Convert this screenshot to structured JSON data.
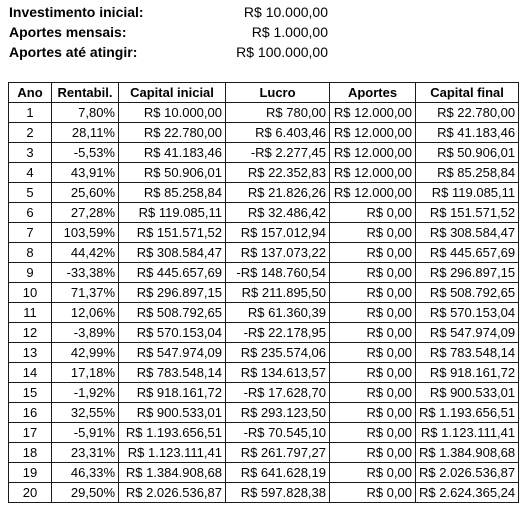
{
  "summary": {
    "initial_label": "Investimento inicial:",
    "initial_value": "R$ 10.000,00",
    "monthly_label": "Aportes mensais:",
    "monthly_value": "R$ 1.000,00",
    "target_label": "Aportes até atingir:",
    "target_value": "R$ 100.000,00"
  },
  "table": {
    "headers": [
      "Ano",
      "Rentabil.",
      "Capital inicial",
      "Lucro",
      "Aportes",
      "Capital final"
    ],
    "rows": [
      [
        "1",
        "7,80%",
        "R$ 10.000,00",
        "R$ 780,00",
        "R$ 12.000,00",
        "R$ 22.780,00"
      ],
      [
        "2",
        "28,11%",
        "R$ 22.780,00",
        "R$ 6.403,46",
        "R$ 12.000,00",
        "R$ 41.183,46"
      ],
      [
        "3",
        "-5,53%",
        "R$ 41.183,46",
        "-R$ 2.277,45",
        "R$ 12.000,00",
        "R$ 50.906,01"
      ],
      [
        "4",
        "43,91%",
        "R$ 50.906,01",
        "R$ 22.352,83",
        "R$ 12.000,00",
        "R$ 85.258,84"
      ],
      [
        "5",
        "25,60%",
        "R$ 85.258,84",
        "R$ 21.826,26",
        "R$ 12.000,00",
        "R$ 119.085,11"
      ],
      [
        "6",
        "27,28%",
        "R$ 119.085,11",
        "R$ 32.486,42",
        "R$ 0,00",
        "R$ 151.571,52"
      ],
      [
        "7",
        "103,59%",
        "R$ 151.571,52",
        "R$ 157.012,94",
        "R$ 0,00",
        "R$ 308.584,47"
      ],
      [
        "8",
        "44,42%",
        "R$ 308.584,47",
        "R$ 137.073,22",
        "R$ 0,00",
        "R$ 445.657,69"
      ],
      [
        "9",
        "-33,38%",
        "R$ 445.657,69",
        "-R$ 148.760,54",
        "R$ 0,00",
        "R$ 296.897,15"
      ],
      [
        "10",
        "71,37%",
        "R$ 296.897,15",
        "R$ 211.895,50",
        "R$ 0,00",
        "R$ 508.792,65"
      ],
      [
        "11",
        "12,06%",
        "R$ 508.792,65",
        "R$ 61.360,39",
        "R$ 0,00",
        "R$ 570.153,04"
      ],
      [
        "12",
        "-3,89%",
        "R$ 570.153,04",
        "-R$ 22.178,95",
        "R$ 0,00",
        "R$ 547.974,09"
      ],
      [
        "13",
        "42,99%",
        "R$ 547.974,09",
        "R$ 235.574,06",
        "R$ 0,00",
        "R$ 783.548,14"
      ],
      [
        "14",
        "17,18%",
        "R$ 783.548,14",
        "R$ 134.613,57",
        "R$ 0,00",
        "R$ 918.161,72"
      ],
      [
        "15",
        "-1,92%",
        "R$ 918.161,72",
        "-R$ 17.628,70",
        "R$ 0,00",
        "R$ 900.533,01"
      ],
      [
        "16",
        "32,55%",
        "R$ 900.533,01",
        "R$ 293.123,50",
        "R$ 0,00",
        "R$ 1.193.656,51"
      ],
      [
        "17",
        "-5,91%",
        "R$ 1.193.656,51",
        "-R$ 70.545,10",
        "R$ 0,00",
        "R$ 1.123.111,41"
      ],
      [
        "18",
        "23,31%",
        "R$ 1.123.111,41",
        "R$ 261.797,27",
        "R$ 0,00",
        "R$ 1.384.908,68"
      ],
      [
        "19",
        "46,33%",
        "R$ 1.384.908,68",
        "R$ 641.628,19",
        "R$ 0,00",
        "R$ 2.026.536,87"
      ],
      [
        "20",
        "29,50%",
        "R$ 2.026.536,87",
        "R$ 597.828,38",
        "R$ 0,00",
        "R$ 2.624.365,24"
      ]
    ]
  }
}
